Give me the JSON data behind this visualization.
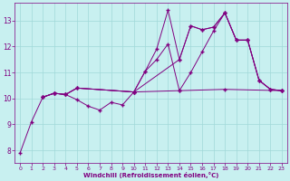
{
  "bg_color": "#c8f0f0",
  "line_color": "#800080",
  "grid_color": "#a0d8d8",
  "xlabel": "Windchill (Refroidissement éolien,°C)",
  "xlim": [
    -0.5,
    23.5
  ],
  "ylim": [
    7.5,
    13.7
  ],
  "xticks": [
    0,
    1,
    2,
    3,
    4,
    5,
    6,
    7,
    8,
    9,
    10,
    11,
    12,
    13,
    14,
    15,
    16,
    17,
    18,
    19,
    20,
    21,
    22,
    23
  ],
  "yticks": [
    8,
    9,
    10,
    11,
    12,
    13
  ],
  "line1_x": [
    0,
    1,
    2,
    3,
    4,
    5,
    6,
    7,
    8,
    9,
    10,
    11,
    12,
    13,
    14,
    15,
    16,
    17,
    18,
    19,
    20,
    21,
    22,
    23
  ],
  "line1_y": [
    7.9,
    9.1,
    10.05,
    10.2,
    10.15,
    9.95,
    9.7,
    9.55,
    9.85,
    9.75,
    10.25,
    11.05,
    11.5,
    12.1,
    10.3,
    11.0,
    11.8,
    12.6,
    13.3,
    12.25,
    12.25,
    10.7,
    10.35,
    10.3
  ],
  "line2_x": [
    2,
    3,
    4,
    5,
    10,
    11,
    12,
    13,
    14,
    15,
    16,
    17,
    18,
    19,
    20,
    21,
    22,
    23
  ],
  "line2_y": [
    10.05,
    10.2,
    10.15,
    10.4,
    10.25,
    11.05,
    11.9,
    13.4,
    11.5,
    12.8,
    12.65,
    12.75,
    13.3,
    12.25,
    12.25,
    10.7,
    10.35,
    10.3
  ],
  "line3_x": [
    2,
    3,
    4,
    5,
    10,
    14,
    15,
    16,
    17,
    18,
    19,
    20,
    21,
    22,
    23
  ],
  "line3_y": [
    10.05,
    10.2,
    10.15,
    10.4,
    10.25,
    11.5,
    12.8,
    12.65,
    12.75,
    13.3,
    12.25,
    12.25,
    10.7,
    10.35,
    10.3
  ],
  "line4_x": [
    2,
    3,
    4,
    5,
    10,
    14,
    18,
    23
  ],
  "line4_y": [
    10.05,
    10.2,
    10.15,
    10.4,
    10.25,
    10.3,
    10.35,
    10.3
  ]
}
